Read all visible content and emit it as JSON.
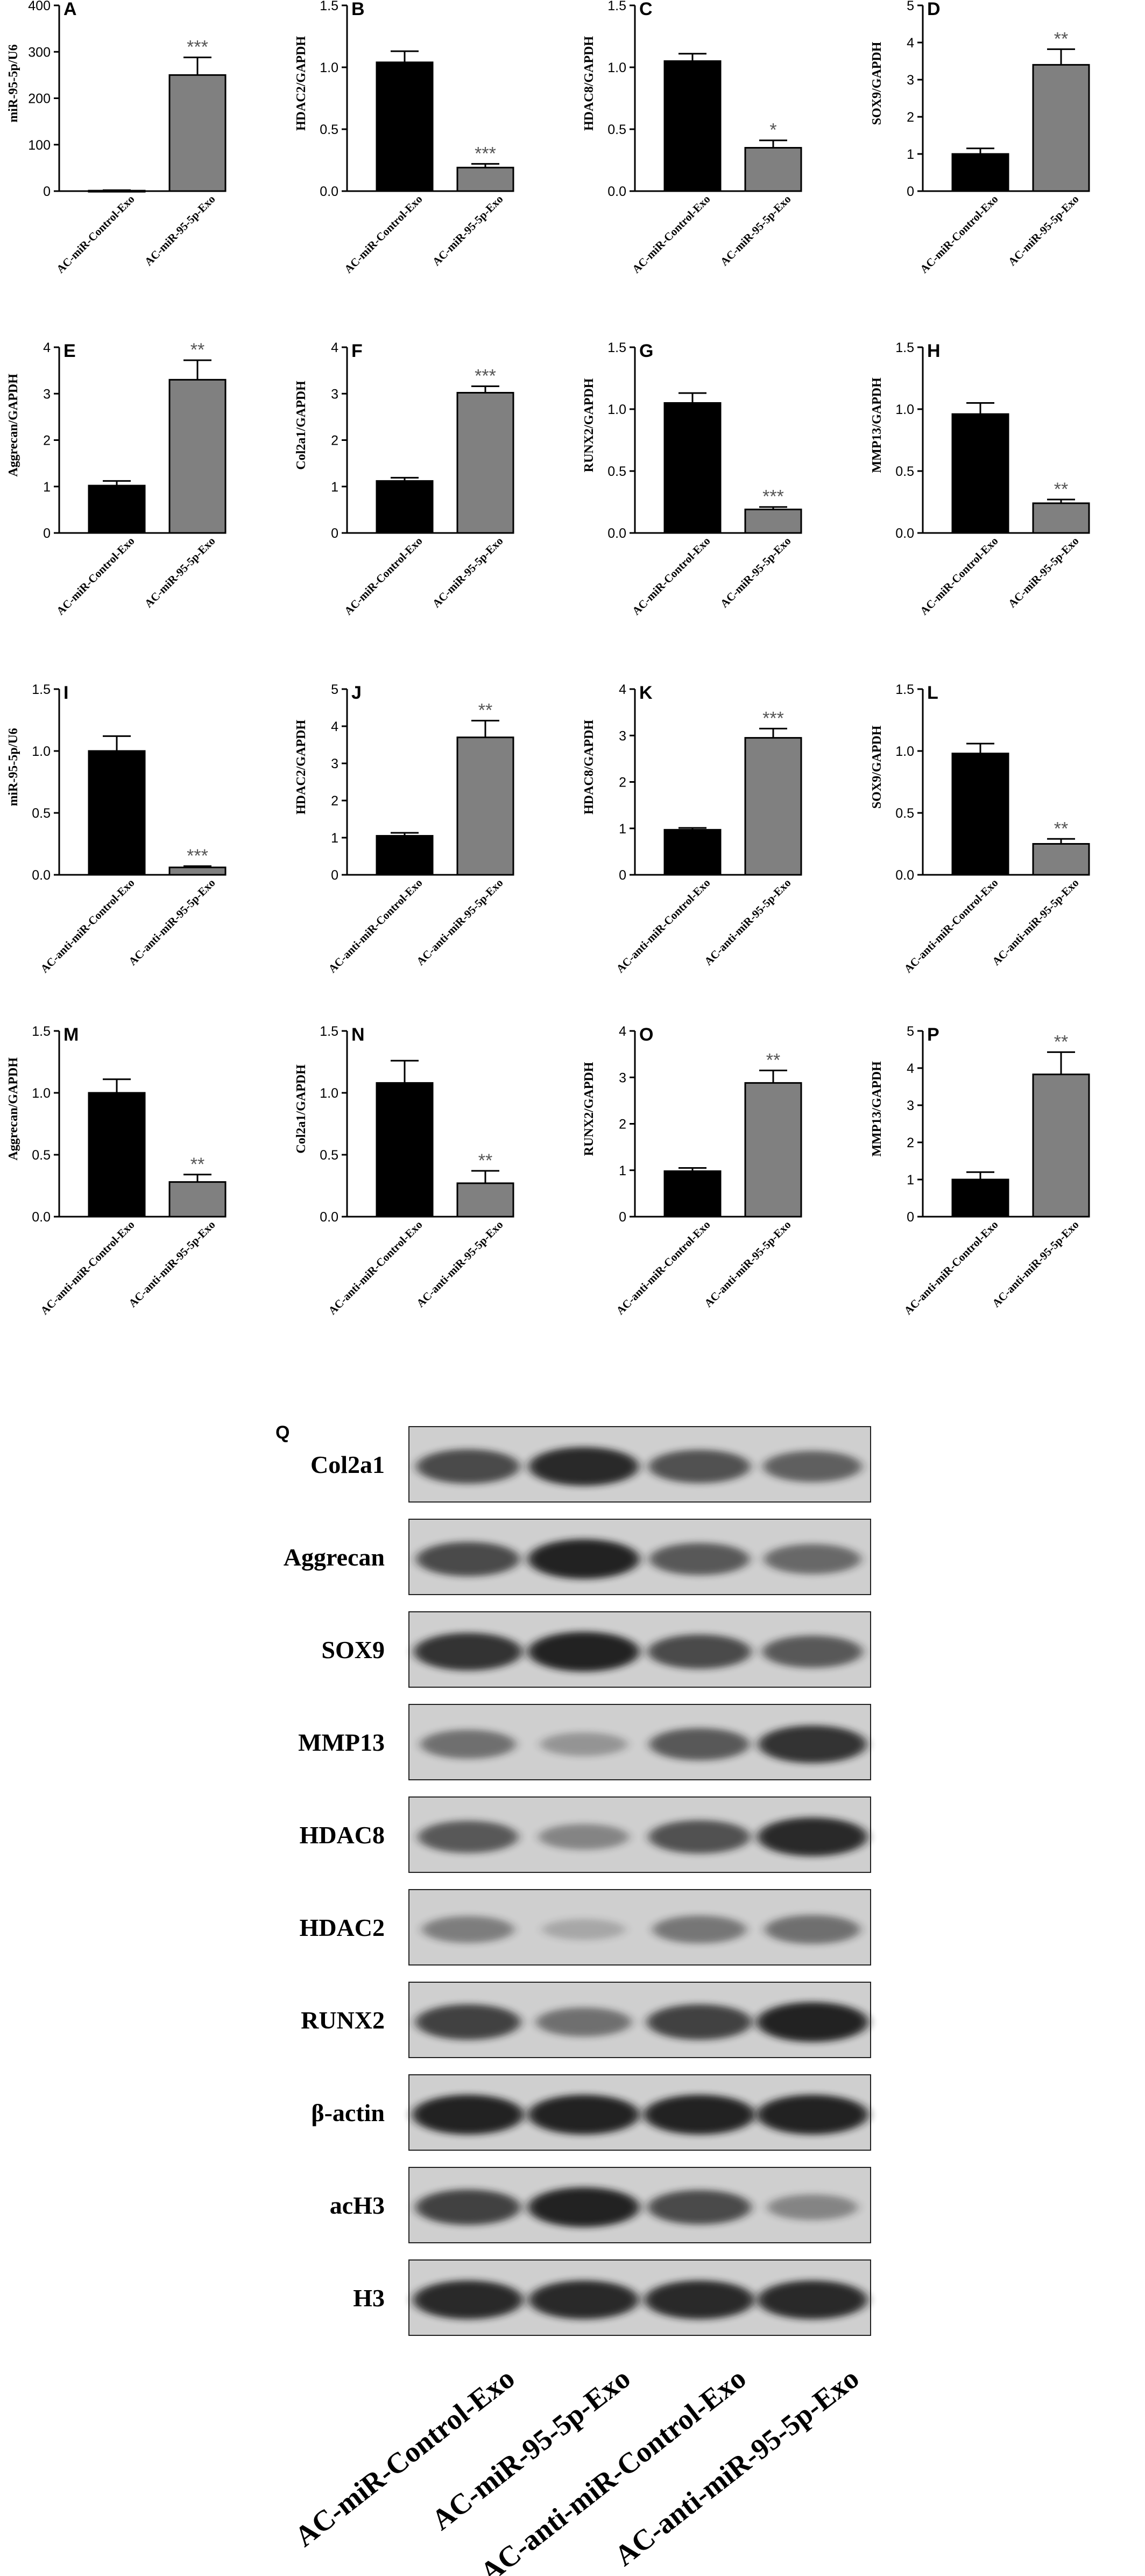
{
  "charts": [
    {
      "letter": "A",
      "ylabel": "miR-95-5p/U6",
      "ylim": [
        0,
        400
      ],
      "ticks": [
        "0",
        "100",
        "200",
        "300",
        "400"
      ],
      "categories": [
        "AC-miR-Control-Exo",
        "AC-miR-95-5p-Exo"
      ],
      "values": [
        1,
        250
      ],
      "errors": [
        1,
        38
      ],
      "sig": "***",
      "type": "bar"
    },
    {
      "letter": "B",
      "ylabel": "HDAC2/GAPDH",
      "ylim": [
        0,
        1.5
      ],
      "ticks": [
        "0.0",
        "0.5",
        "1.0",
        "1.5"
      ],
      "categories": [
        "AC-miR-Control-Exo",
        "AC-miR-95-5p-Exo"
      ],
      "values": [
        1.04,
        0.19
      ],
      "errors": [
        0.09,
        0.03
      ],
      "sig": "***",
      "type": "bar"
    },
    {
      "letter": "C",
      "ylabel": "HDAC8/GAPDH",
      "ylim": [
        0,
        1.5
      ],
      "ticks": [
        "0.0",
        "0.5",
        "1.0",
        "1.5"
      ],
      "categories": [
        "AC-miR-Control-Exo",
        "AC-miR-95-5p-Exo"
      ],
      "values": [
        1.05,
        0.35
      ],
      "errors": [
        0.06,
        0.06
      ],
      "sig": "*",
      "type": "bar"
    },
    {
      "letter": "D",
      "ylabel": "SOX9/GAPDH",
      "ylim": [
        0,
        5
      ],
      "ticks": [
        "0",
        "1",
        "2",
        "3",
        "4",
        "5"
      ],
      "categories": [
        "AC-miR-Control-Exo",
        "AC-miR-95-5p-Exo"
      ],
      "values": [
        1.0,
        3.4
      ],
      "errors": [
        0.15,
        0.42
      ],
      "sig": "**",
      "type": "bar"
    },
    {
      "letter": "E",
      "ylabel": "Aggrecan/GAPDH",
      "ylim": [
        0,
        4
      ],
      "ticks": [
        "0",
        "1",
        "2",
        "3",
        "4"
      ],
      "categories": [
        "AC-miR-Control-Exo",
        "AC-miR-95-5p-Exo"
      ],
      "values": [
        1.02,
        3.3
      ],
      "errors": [
        0.1,
        0.42
      ],
      "sig": "**",
      "type": "bar"
    },
    {
      "letter": "F",
      "ylabel": "Col2a1/GAPDH",
      "ylim": [
        0,
        4
      ],
      "ticks": [
        "0",
        "1",
        "2",
        "3",
        "4"
      ],
      "categories": [
        "AC-miR-Control-Exo",
        "AC-miR-95-5p-Exo"
      ],
      "values": [
        1.12,
        3.02
      ],
      "errors": [
        0.07,
        0.14
      ],
      "sig": "***",
      "type": "bar"
    },
    {
      "letter": "G",
      "ylabel": "RUNX2/GAPDH",
      "ylim": [
        0,
        1.5
      ],
      "ticks": [
        "0.0",
        "0.5",
        "1.0",
        "1.5"
      ],
      "categories": [
        "AC-miR-Control-Exo",
        "AC-miR-95-5p-Exo"
      ],
      "values": [
        1.05,
        0.19
      ],
      "errors": [
        0.08,
        0.02
      ],
      "sig": "***",
      "type": "bar"
    },
    {
      "letter": "H",
      "ylabel": "MMP13/GAPDH",
      "ylim": [
        0,
        1.5
      ],
      "ticks": [
        "0.0",
        "0.5",
        "1.0",
        "1.5"
      ],
      "categories": [
        "AC-miR-Control-Exo",
        "AC-miR-95-5p-Exo"
      ],
      "values": [
        0.96,
        0.24
      ],
      "errors": [
        0.09,
        0.03
      ],
      "sig": "**",
      "type": "bar"
    },
    {
      "letter": "I",
      "ylabel": "miR-95-5p/U6",
      "ylim": [
        0,
        1.5
      ],
      "ticks": [
        "0.0",
        "0.5",
        "1.0",
        "1.5"
      ],
      "categories": [
        "AC-anti-miR-Control-Exo",
        "AC-anti-miR-95-5p-Exo"
      ],
      "values": [
        1.0,
        0.06
      ],
      "errors": [
        0.12,
        0.01
      ],
      "sig": "***",
      "type": "bar"
    },
    {
      "letter": "J",
      "ylabel": "HDAC2/GAPDH",
      "ylim": [
        0,
        5
      ],
      "ticks": [
        "0",
        "1",
        "2",
        "3",
        "4",
        "5"
      ],
      "categories": [
        "AC-anti-miR-Control-Exo",
        "AC-anti-miR-95-5p-Exo"
      ],
      "values": [
        1.05,
        3.7
      ],
      "errors": [
        0.08,
        0.45
      ],
      "sig": "**",
      "type": "bar"
    },
    {
      "letter": "K",
      "ylabel": "HDAC8/GAPDH",
      "ylim": [
        0,
        4
      ],
      "ticks": [
        "0",
        "1",
        "2",
        "3",
        "4"
      ],
      "categories": [
        "AC-anti-miR-Control-Exo",
        "AC-anti-miR-95-5p-Exo"
      ],
      "values": [
        0.97,
        2.95
      ],
      "errors": [
        0.04,
        0.2
      ],
      "sig": "***",
      "type": "bar"
    },
    {
      "letter": "L",
      "ylabel": "SOX9/GAPDH",
      "ylim": [
        0,
        1.5
      ],
      "ticks": [
        "0.0",
        "0.5",
        "1.0",
        "1.5"
      ],
      "categories": [
        "AC-anti-miR-Control-Exo",
        "AC-anti-miR-95-5p-Exo"
      ],
      "values": [
        0.98,
        0.25
      ],
      "errors": [
        0.08,
        0.04
      ],
      "sig": "**",
      "type": "bar"
    },
    {
      "letter": "M",
      "ylabel": "Aggrecan/GAPDH",
      "ylim": [
        0,
        1.5
      ],
      "ticks": [
        "0.0",
        "0.5",
        "1.0",
        "1.5"
      ],
      "categories": [
        "AC-anti-miR-Control-Exo",
        "AC-anti-miR-95-5p-Exo"
      ],
      "values": [
        1.0,
        0.28
      ],
      "errors": [
        0.11,
        0.06
      ],
      "sig": "**",
      "type": "bar"
    },
    {
      "letter": "N",
      "ylabel": "Col2a1/GAPDH",
      "ylim": [
        0,
        1.5
      ],
      "ticks": [
        "0.0",
        "0.5",
        "1.0",
        "1.5"
      ],
      "categories": [
        "AC-anti-miR-Control-Exo",
        "AC-anti-miR-95-5p-Exo"
      ],
      "values": [
        1.08,
        0.27
      ],
      "errors": [
        0.18,
        0.1
      ],
      "sig": "**",
      "type": "bar"
    },
    {
      "letter": "O",
      "ylabel": "RUNX2/GAPDH",
      "ylim": [
        0,
        4
      ],
      "ticks": [
        "0",
        "1",
        "2",
        "3",
        "4"
      ],
      "categories": [
        "AC-anti-miR-Control-Exo",
        "AC-anti-miR-95-5p-Exo"
      ],
      "values": [
        0.98,
        2.88
      ],
      "errors": [
        0.07,
        0.27
      ],
      "sig": "**",
      "type": "bar"
    },
    {
      "letter": "P",
      "ylabel": "MMP13/GAPDH",
      "ylim": [
        0,
        5
      ],
      "ticks": [
        "0",
        "1",
        "2",
        "3",
        "4",
        "5"
      ],
      "categories": [
        "AC-anti-miR-Control-Exo",
        "AC-anti-miR-95-5p-Exo"
      ],
      "values": [
        1.0,
        3.83
      ],
      "errors": [
        0.2,
        0.6
      ],
      "sig": "**",
      "type": "bar"
    }
  ],
  "blot": {
    "letter": "Q",
    "lanes": [
      "AC-miR-Control-Exo",
      "AC-miR-95-5p-Exo",
      "AC-anti-miR-Control-Exo",
      "AC-anti-miR-95-5p-Exo"
    ],
    "rows": [
      {
        "label": "Col2a1",
        "intensity": [
          0.7,
          0.9,
          0.65,
          0.55
        ]
      },
      {
        "label": "Aggrecan",
        "intensity": [
          0.7,
          0.95,
          0.6,
          0.5
        ]
      },
      {
        "label": "SOX9",
        "intensity": [
          0.85,
          0.95,
          0.7,
          0.6
        ]
      },
      {
        "label": "MMP13",
        "intensity": [
          0.45,
          0.2,
          0.6,
          0.85
        ]
      },
      {
        "label": "HDAC8",
        "intensity": [
          0.6,
          0.3,
          0.65,
          0.9
        ]
      },
      {
        "label": "HDAC2",
        "intensity": [
          0.35,
          0.08,
          0.4,
          0.45
        ]
      },
      {
        "label": "RUNX2",
        "intensity": [
          0.75,
          0.45,
          0.75,
          0.95
        ]
      },
      {
        "label": "β-actin",
        "intensity": [
          0.95,
          0.95,
          0.95,
          0.95
        ]
      },
      {
        "label": "acH3",
        "intensity": [
          0.75,
          0.95,
          0.7,
          0.3
        ]
      },
      {
        "label": "H3",
        "intensity": [
          0.9,
          0.9,
          0.9,
          0.9
        ]
      }
    ]
  },
  "colors": {
    "control_bar": "#000000",
    "treated_bar": "#808080",
    "sig_text": "#555555",
    "blot_bg": "#cfcfcf",
    "band": "#1a1a1a"
  }
}
